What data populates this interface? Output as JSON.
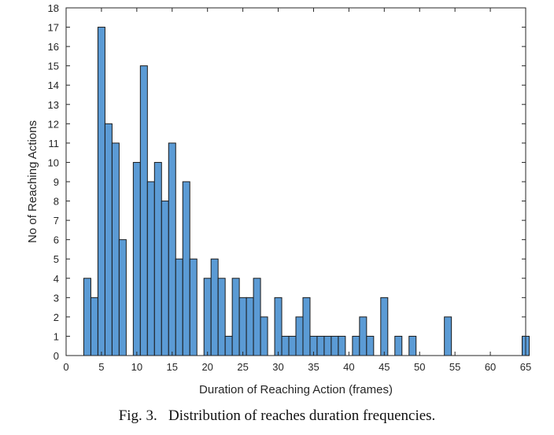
{
  "caption": "Fig. 3.   Distribution of reaches duration frequencies.",
  "chart_data": {
    "type": "bar",
    "title": "",
    "xlabel": "Duration of Reaching Action (frames)",
    "ylabel": "No of Reaching Actions",
    "xlim": [
      0,
      65
    ],
    "ylim": [
      0,
      18
    ],
    "xticks": [
      0,
      5,
      10,
      15,
      20,
      25,
      30,
      35,
      40,
      45,
      50,
      55,
      60,
      65
    ],
    "yticks": [
      0,
      1,
      2,
      3,
      4,
      5,
      6,
      7,
      8,
      9,
      10,
      11,
      12,
      13,
      14,
      15,
      16,
      17,
      18
    ],
    "bin_width": 1,
    "bins": [
      {
        "x": 3,
        "count": 4
      },
      {
        "x": 4,
        "count": 3
      },
      {
        "x": 5,
        "count": 17
      },
      {
        "x": 6,
        "count": 12
      },
      {
        "x": 7,
        "count": 11
      },
      {
        "x": 8,
        "count": 6
      },
      {
        "x": 9,
        "count": 0
      },
      {
        "x": 10,
        "count": 10
      },
      {
        "x": 11,
        "count": 15
      },
      {
        "x": 12,
        "count": 9
      },
      {
        "x": 13,
        "count": 10
      },
      {
        "x": 14,
        "count": 8
      },
      {
        "x": 15,
        "count": 11
      },
      {
        "x": 16,
        "count": 5
      },
      {
        "x": 17,
        "count": 9
      },
      {
        "x": 18,
        "count": 5
      },
      {
        "x": 19,
        "count": 0
      },
      {
        "x": 20,
        "count": 4
      },
      {
        "x": 21,
        "count": 5
      },
      {
        "x": 22,
        "count": 4
      },
      {
        "x": 23,
        "count": 1
      },
      {
        "x": 24,
        "count": 4
      },
      {
        "x": 25,
        "count": 3
      },
      {
        "x": 26,
        "count": 3
      },
      {
        "x": 27,
        "count": 4
      },
      {
        "x": 28,
        "count": 2
      },
      {
        "x": 29,
        "count": 0
      },
      {
        "x": 30,
        "count": 3
      },
      {
        "x": 31,
        "count": 1
      },
      {
        "x": 32,
        "count": 1
      },
      {
        "x": 33,
        "count": 2
      },
      {
        "x": 34,
        "count": 3
      },
      {
        "x": 35,
        "count": 1
      },
      {
        "x": 36,
        "count": 1
      },
      {
        "x": 37,
        "count": 1
      },
      {
        "x": 38,
        "count": 1
      },
      {
        "x": 39,
        "count": 1
      },
      {
        "x": 40,
        "count": 0
      },
      {
        "x": 41,
        "count": 1
      },
      {
        "x": 42,
        "count": 2
      },
      {
        "x": 43,
        "count": 1
      },
      {
        "x": 44,
        "count": 0
      },
      {
        "x": 45,
        "count": 3
      },
      {
        "x": 46,
        "count": 0
      },
      {
        "x": 47,
        "count": 1
      },
      {
        "x": 48,
        "count": 0
      },
      {
        "x": 49,
        "count": 1
      },
      {
        "x": 50,
        "count": 0
      },
      {
        "x": 51,
        "count": 0
      },
      {
        "x": 52,
        "count": 0
      },
      {
        "x": 53,
        "count": 0
      },
      {
        "x": 54,
        "count": 2
      },
      {
        "x": 55,
        "count": 0
      },
      {
        "x": 56,
        "count": 0
      },
      {
        "x": 57,
        "count": 0
      },
      {
        "x": 58,
        "count": 0
      },
      {
        "x": 59,
        "count": 0
      },
      {
        "x": 60,
        "count": 0
      },
      {
        "x": 61,
        "count": 0
      },
      {
        "x": 62,
        "count": 0
      },
      {
        "x": 63,
        "count": 0
      },
      {
        "x": 64,
        "count": 0
      },
      {
        "x": 65,
        "count": 1
      }
    ],
    "grid": false,
    "legend": "none",
    "colors": {
      "bar_fill": "#5b9bd5",
      "bar_edge": "#1a1a1a",
      "axis": "#262626"
    }
  }
}
